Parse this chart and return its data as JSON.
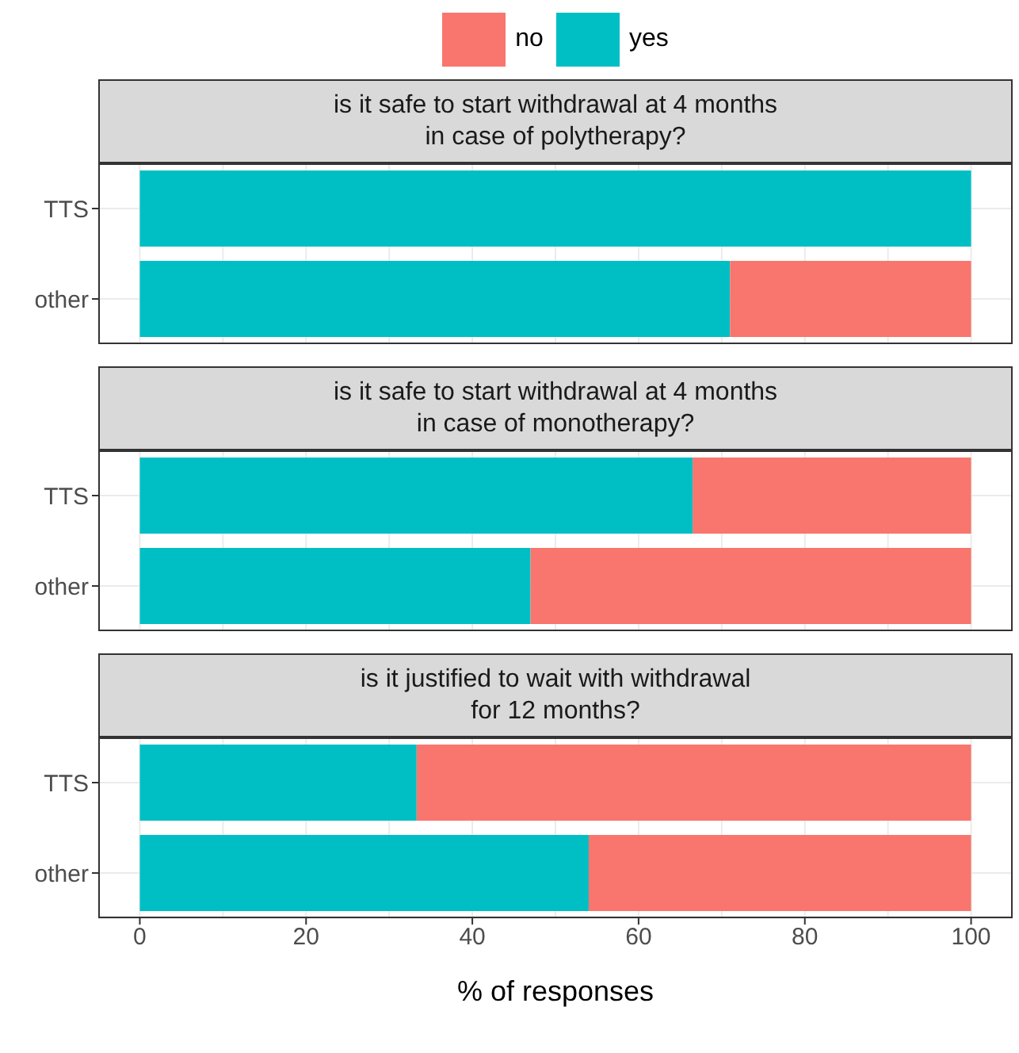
{
  "chart_data": [
    {
      "type": "bar",
      "orientation": "horizontal",
      "stacked": true,
      "title": "is it safe to start withdrawal at 4 months\nin case of polytherapy?",
      "categories": [
        "TTS",
        "other"
      ],
      "series": [
        {
          "name": "yes",
          "color": "#00bfc4",
          "values": [
            100,
            71
          ]
        },
        {
          "name": "no",
          "color": "#f8766d",
          "values": [
            0,
            29
          ]
        }
      ],
      "xlim": [
        -5,
        105
      ],
      "xticks": [
        0,
        20,
        40,
        60,
        80,
        100
      ],
      "grid": true,
      "legend": "top",
      "tick_labels": "y"
    },
    {
      "type": "bar",
      "orientation": "horizontal",
      "stacked": true,
      "title": "is it safe to start withdrawal at 4 months\nin case of monotherapy?",
      "categories": [
        "TTS",
        "other"
      ],
      "series": [
        {
          "color": "#00bfc4",
          "values": [
            66.5,
            47
          ]
        },
        {
          "color": "#f8766d",
          "values": [
            33.5,
            53
          ]
        }
      ],
      "xlim": [
        -5,
        105
      ],
      "xticks": [
        0,
        20,
        40,
        60,
        80,
        100
      ],
      "grid": true,
      "tick_labels": "y"
    },
    {
      "type": "bar",
      "orientation": "horizontal",
      "stacked": true,
      "title": "is it justified to wait with withdrawal\nfor 12 months?",
      "xlabel": "% of responses",
      "categories": [
        "TTS",
        "other"
      ],
      "series": [
        {
          "color": "#00bfc4",
          "values": [
            33.3,
            54
          ]
        },
        {
          "color": "#f8766d",
          "values": [
            66.7,
            46
          ]
        }
      ],
      "xlim": [
        -5,
        105
      ],
      "xticks": [
        0,
        20,
        40,
        60,
        80,
        100
      ],
      "grid": true
    }
  ]
}
